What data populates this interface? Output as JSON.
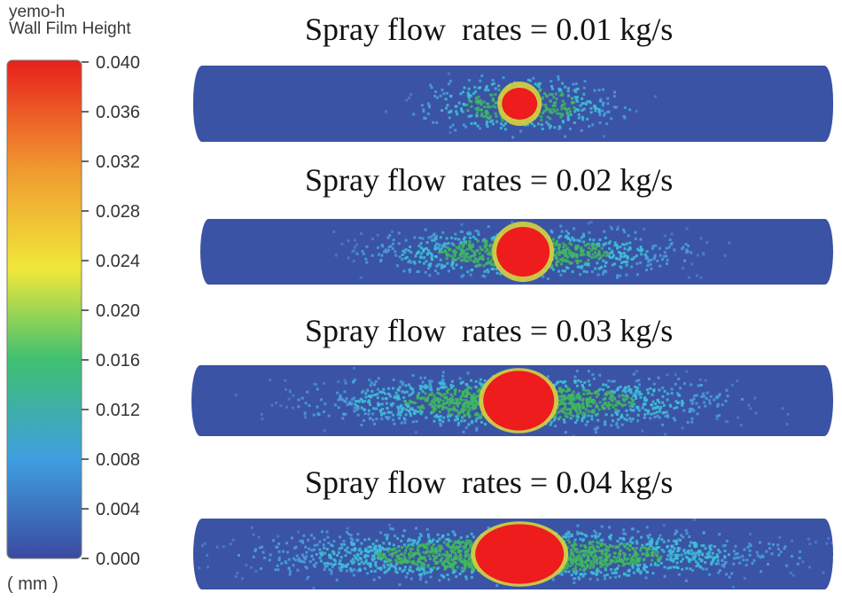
{
  "colorbar": {
    "title_line1": "yemo-h",
    "title_line2": "Wall Film Height",
    "unit": "( mm )",
    "ticks": [
      "0.040",
      "0.036",
      "0.032",
      "0.028",
      "0.024",
      "0.020",
      "0.016",
      "0.012",
      "0.008",
      "0.004",
      "0.000"
    ],
    "min": 0.0,
    "max": 0.04,
    "colors": [
      "#3b4aa0",
      "#3f9fe0",
      "#3fc070",
      "#f0e83a",
      "#f09a30",
      "#e8201c"
    ]
  },
  "panels": [
    {
      "title": "Spray flow  rates = 0.01 kg/s",
      "flow_rate_kg_s": 0.01
    },
    {
      "title": "Spray flow  rates = 0.02 kg/s",
      "flow_rate_kg_s": 0.02
    },
    {
      "title": "Spray flow  rates = 0.03 kg/s",
      "flow_rate_kg_s": 0.03
    },
    {
      "title": "Spray flow  rates = 0.04 kg/s",
      "flow_rate_kg_s": 0.04
    }
  ]
}
